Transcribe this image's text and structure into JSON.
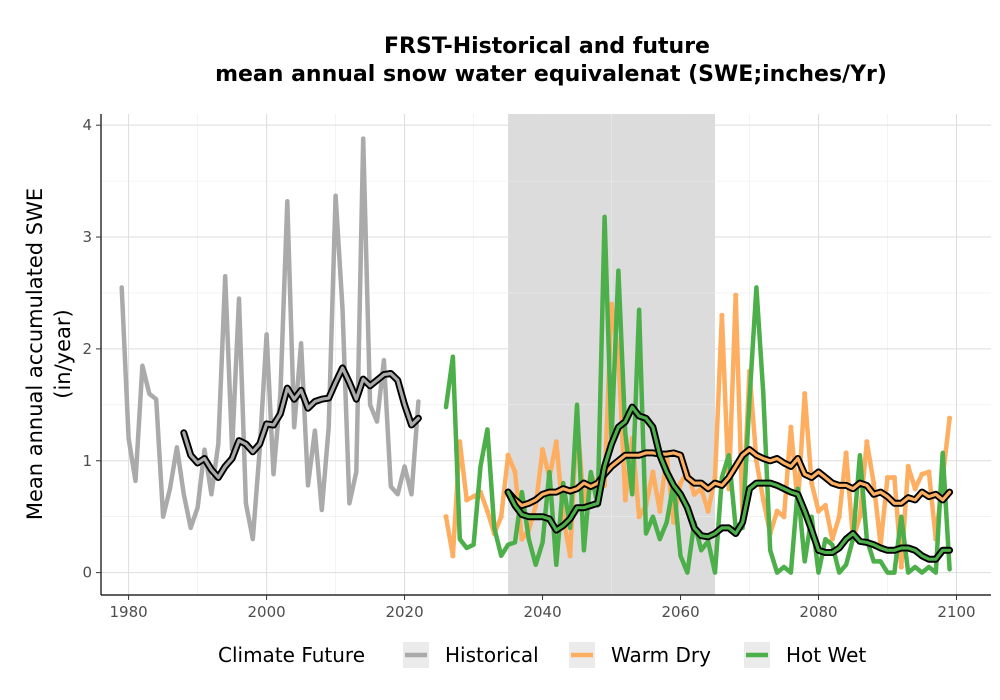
{
  "chart_data": {
    "type": "line",
    "title": "FRST-Historical and future",
    "subtitle": "mean annual snow water equivalenat (SWE;inches/Yr)",
    "xlabel": "",
    "ylabel": "Mean annual accumulated SWE",
    "ylabel_units": "(in/year)",
    "xlim": [
      1976,
      2105
    ],
    "ylim": [
      -0.2,
      4.1
    ],
    "x_ticks": [
      "1980",
      "2000",
      "2020",
      "2040",
      "2060",
      "2080",
      "2100"
    ],
    "y_ticks": [
      "0",
      "1",
      "2",
      "3",
      "4"
    ],
    "grid": true,
    "shaded_period": [
      2035,
      2065
    ],
    "legend": {
      "title": "Climate Future",
      "position": "bottom",
      "entries": [
        {
          "name": "Historical",
          "color": "#aaaaaa"
        },
        {
          "name": "Warm Dry",
          "color": "#fdae61"
        },
        {
          "name": "Hot Wet",
          "color": "#4daf4a"
        }
      ]
    },
    "series": [
      {
        "name": "Historical",
        "color": "#aaaaaa",
        "x": [
          1979,
          1980,
          1981,
          1982,
          1983,
          1984,
          1985,
          1986,
          1987,
          1988,
          1989,
          1990,
          1991,
          1992,
          1993,
          1994,
          1995,
          1996,
          1997,
          1998,
          1999,
          2000,
          2001,
          2002,
          2003,
          2004,
          2005,
          2006,
          2007,
          2008,
          2009,
          2010,
          2011,
          2012,
          2013,
          2014,
          2015,
          2016,
          2017,
          2018,
          2019,
          2020,
          2021,
          2022
        ],
        "values": [
          2.55,
          1.2,
          0.82,
          1.85,
          1.6,
          1.55,
          0.5,
          0.75,
          1.12,
          0.7,
          0.4,
          0.58,
          1.1,
          0.7,
          1.15,
          2.65,
          1.1,
          2.45,
          0.62,
          0.3,
          1.1,
          2.13,
          0.88,
          1.6,
          3.32,
          1.3,
          2.05,
          0.78,
          1.27,
          0.56,
          1.3,
          3.37,
          2.36,
          0.62,
          0.9,
          3.88,
          1.5,
          1.35,
          1.9,
          0.77,
          0.7,
          0.95,
          0.7,
          1.53
        ]
      },
      {
        "name": "Historical moving average",
        "color": "#aaaaaa",
        "x": [
          1988,
          1989,
          1990,
          1991,
          1992,
          1993,
          1994,
          1995,
          1996,
          1997,
          1998,
          1999,
          2000,
          2001,
          2002,
          2003,
          2004,
          2005,
          2006,
          2007,
          2008,
          2009,
          2010,
          2011,
          2012,
          2013,
          2014,
          2015,
          2016,
          2017,
          2018,
          2019,
          2020,
          2021,
          2022
        ],
        "values": [
          1.25,
          1.05,
          0.98,
          1.02,
          0.92,
          0.85,
          0.95,
          1.02,
          1.18,
          1.15,
          1.08,
          1.15,
          1.33,
          1.32,
          1.42,
          1.65,
          1.55,
          1.63,
          1.47,
          1.53,
          1.55,
          1.56,
          1.7,
          1.83,
          1.7,
          1.55,
          1.73,
          1.67,
          1.72,
          1.77,
          1.78,
          1.72,
          1.5,
          1.32,
          1.38
        ]
      },
      {
        "name": "Warm Dry",
        "color": "#fdae61",
        "x": [
          2026,
          2027,
          2028,
          2029,
          2030,
          2031,
          2032,
          2033,
          2034,
          2035,
          2036,
          2037,
          2038,
          2039,
          2040,
          2041,
          2042,
          2043,
          2044,
          2045,
          2046,
          2047,
          2048,
          2049,
          2050,
          2051,
          2052,
          2053,
          2054,
          2055,
          2056,
          2057,
          2058,
          2059,
          2060,
          2061,
          2062,
          2063,
          2064,
          2065,
          2066,
          2067,
          2068,
          2069,
          2070,
          2071,
          2072,
          2073,
          2074,
          2075,
          2076,
          2077,
          2078,
          2079,
          2080,
          2081,
          2082,
          2083,
          2084,
          2085,
          2086,
          2087,
          2088,
          2089,
          2090,
          2091,
          2092,
          2093,
          2094,
          2095,
          2096,
          2097,
          2098,
          2099
        ],
        "values": [
          0.5,
          0.15,
          1.17,
          0.65,
          0.68,
          0.72,
          0.55,
          0.35,
          0.5,
          1.05,
          0.9,
          0.3,
          0.38,
          0.6,
          1.1,
          0.85,
          1.17,
          0.5,
          0.15,
          1.4,
          0.6,
          0.88,
          0.75,
          0.78,
          2.4,
          1.95,
          0.65,
          1.2,
          0.5,
          0.6,
          0.9,
          0.55,
          1.05,
          0.45,
          0.8,
          0.9,
          0.7,
          0.75,
          0.55,
          0.85,
          2.3,
          0.75,
          2.48,
          0.5,
          1.8,
          1.0,
          0.65,
          0.35,
          0.55,
          0.5,
          1.3,
          0.6,
          1.6,
          0.8,
          0.55,
          0.6,
          0.3,
          0.5,
          1.07,
          0.3,
          0.5,
          1.17,
          0.8,
          0.25,
          0.85,
          0.85,
          0.05,
          0.95,
          0.75,
          0.88,
          0.9,
          0.3,
          0.85,
          1.38
        ]
      },
      {
        "name": "Warm Dry moving average",
        "color": "#fdae61",
        "x": [
          2035,
          2036,
          2037,
          2038,
          2039,
          2040,
          2041,
          2042,
          2043,
          2044,
          2045,
          2046,
          2047,
          2048,
          2049,
          2050,
          2051,
          2052,
          2053,
          2054,
          2055,
          2056,
          2057,
          2058,
          2059,
          2060,
          2061,
          2062,
          2063,
          2064,
          2065,
          2066,
          2067,
          2068,
          2069,
          2070,
          2071,
          2072,
          2073,
          2074,
          2075,
          2076,
          2077,
          2078,
          2079,
          2080,
          2081,
          2082,
          2083,
          2084,
          2085,
          2086,
          2087,
          2088,
          2089,
          2090,
          2091,
          2092,
          2093,
          2094,
          2095,
          2096,
          2097,
          2098,
          2099
        ],
        "values": [
          0.72,
          0.65,
          0.6,
          0.62,
          0.65,
          0.7,
          0.72,
          0.72,
          0.75,
          0.73,
          0.75,
          0.8,
          0.77,
          0.8,
          0.88,
          0.95,
          1.0,
          1.05,
          1.05,
          1.05,
          1.07,
          1.07,
          1.06,
          1.06,
          1.07,
          1.05,
          0.85,
          0.8,
          0.8,
          0.75,
          0.8,
          0.78,
          0.85,
          0.95,
          1.05,
          1.1,
          1.05,
          1.02,
          1.0,
          1.02,
          0.98,
          0.95,
          1.02,
          0.88,
          0.85,
          0.9,
          0.85,
          0.8,
          0.78,
          0.78,
          0.75,
          0.8,
          0.78,
          0.7,
          0.72,
          0.68,
          0.62,
          0.62,
          0.67,
          0.65,
          0.72,
          0.68,
          0.7,
          0.65,
          0.72
        ]
      },
      {
        "name": "Hot Wet",
        "color": "#4daf4a",
        "x": [
          2026,
          2027,
          2028,
          2029,
          2030,
          2031,
          2032,
          2033,
          2034,
          2035,
          2036,
          2037,
          2038,
          2039,
          2040,
          2041,
          2042,
          2043,
          2044,
          2045,
          2046,
          2047,
          2048,
          2049,
          2050,
          2051,
          2052,
          2053,
          2054,
          2055,
          2056,
          2057,
          2058,
          2059,
          2060,
          2061,
          2062,
          2063,
          2064,
          2065,
          2066,
          2067,
          2068,
          2069,
          2070,
          2071,
          2072,
          2073,
          2074,
          2075,
          2076,
          2077,
          2078,
          2079,
          2080,
          2081,
          2082,
          2083,
          2084,
          2085,
          2086,
          2087,
          2088,
          2089,
          2090,
          2091,
          2092,
          2093,
          2094,
          2095,
          2096,
          2097,
          2098,
          2099
        ],
        "values": [
          1.48,
          1.93,
          0.3,
          0.22,
          0.25,
          0.95,
          1.28,
          0.4,
          0.15,
          0.25,
          0.27,
          0.72,
          0.3,
          0.07,
          0.27,
          0.9,
          0.07,
          0.8,
          0.4,
          1.5,
          0.2,
          0.9,
          0.6,
          3.18,
          1.2,
          2.7,
          1.25,
          0.7,
          2.35,
          0.35,
          0.5,
          0.3,
          0.45,
          0.8,
          0.15,
          0.0,
          0.45,
          0.2,
          0.28,
          0.0,
          0.85,
          1.05,
          0.4,
          0.4,
          1.55,
          2.55,
          1.6,
          0.2,
          0.0,
          0.05,
          0.0,
          0.75,
          0.1,
          0.5,
          0.0,
          0.3,
          0.25,
          0.0,
          0.07,
          0.3,
          1.05,
          0.3,
          0.1,
          0.1,
          0.0,
          0.0,
          0.5,
          0.0,
          0.05,
          0.0,
          0.05,
          0.0,
          1.07,
          0.03
        ]
      },
      {
        "name": "Hot Wet moving average",
        "color": "#4daf4a",
        "x": [
          2035,
          2036,
          2037,
          2038,
          2039,
          2040,
          2041,
          2042,
          2043,
          2044,
          2045,
          2046,
          2047,
          2048,
          2049,
          2050,
          2051,
          2052,
          2053,
          2054,
          2055,
          2056,
          2057,
          2058,
          2059,
          2060,
          2061,
          2062,
          2063,
          2064,
          2065,
          2066,
          2067,
          2068,
          2069,
          2070,
          2071,
          2072,
          2073,
          2074,
          2075,
          2076,
          2077,
          2078,
          2079,
          2080,
          2081,
          2082,
          2083,
          2084,
          2085,
          2086,
          2087,
          2088,
          2089,
          2090,
          2091,
          2092,
          2093,
          2094,
          2095,
          2096,
          2097,
          2098,
          2099
        ],
        "values": [
          0.72,
          0.6,
          0.52,
          0.5,
          0.5,
          0.5,
          0.48,
          0.38,
          0.42,
          0.48,
          0.58,
          0.58,
          0.6,
          0.62,
          0.95,
          1.15,
          1.3,
          1.35,
          1.48,
          1.4,
          1.38,
          1.3,
          1.05,
          0.9,
          0.78,
          0.7,
          0.58,
          0.4,
          0.33,
          0.32,
          0.35,
          0.4,
          0.4,
          0.35,
          0.45,
          0.75,
          0.8,
          0.8,
          0.8,
          0.78,
          0.75,
          0.72,
          0.7,
          0.55,
          0.38,
          0.2,
          0.18,
          0.18,
          0.22,
          0.3,
          0.35,
          0.28,
          0.27,
          0.25,
          0.22,
          0.2,
          0.2,
          0.22,
          0.22,
          0.2,
          0.15,
          0.12,
          0.12,
          0.2,
          0.2
        ]
      }
    ]
  }
}
